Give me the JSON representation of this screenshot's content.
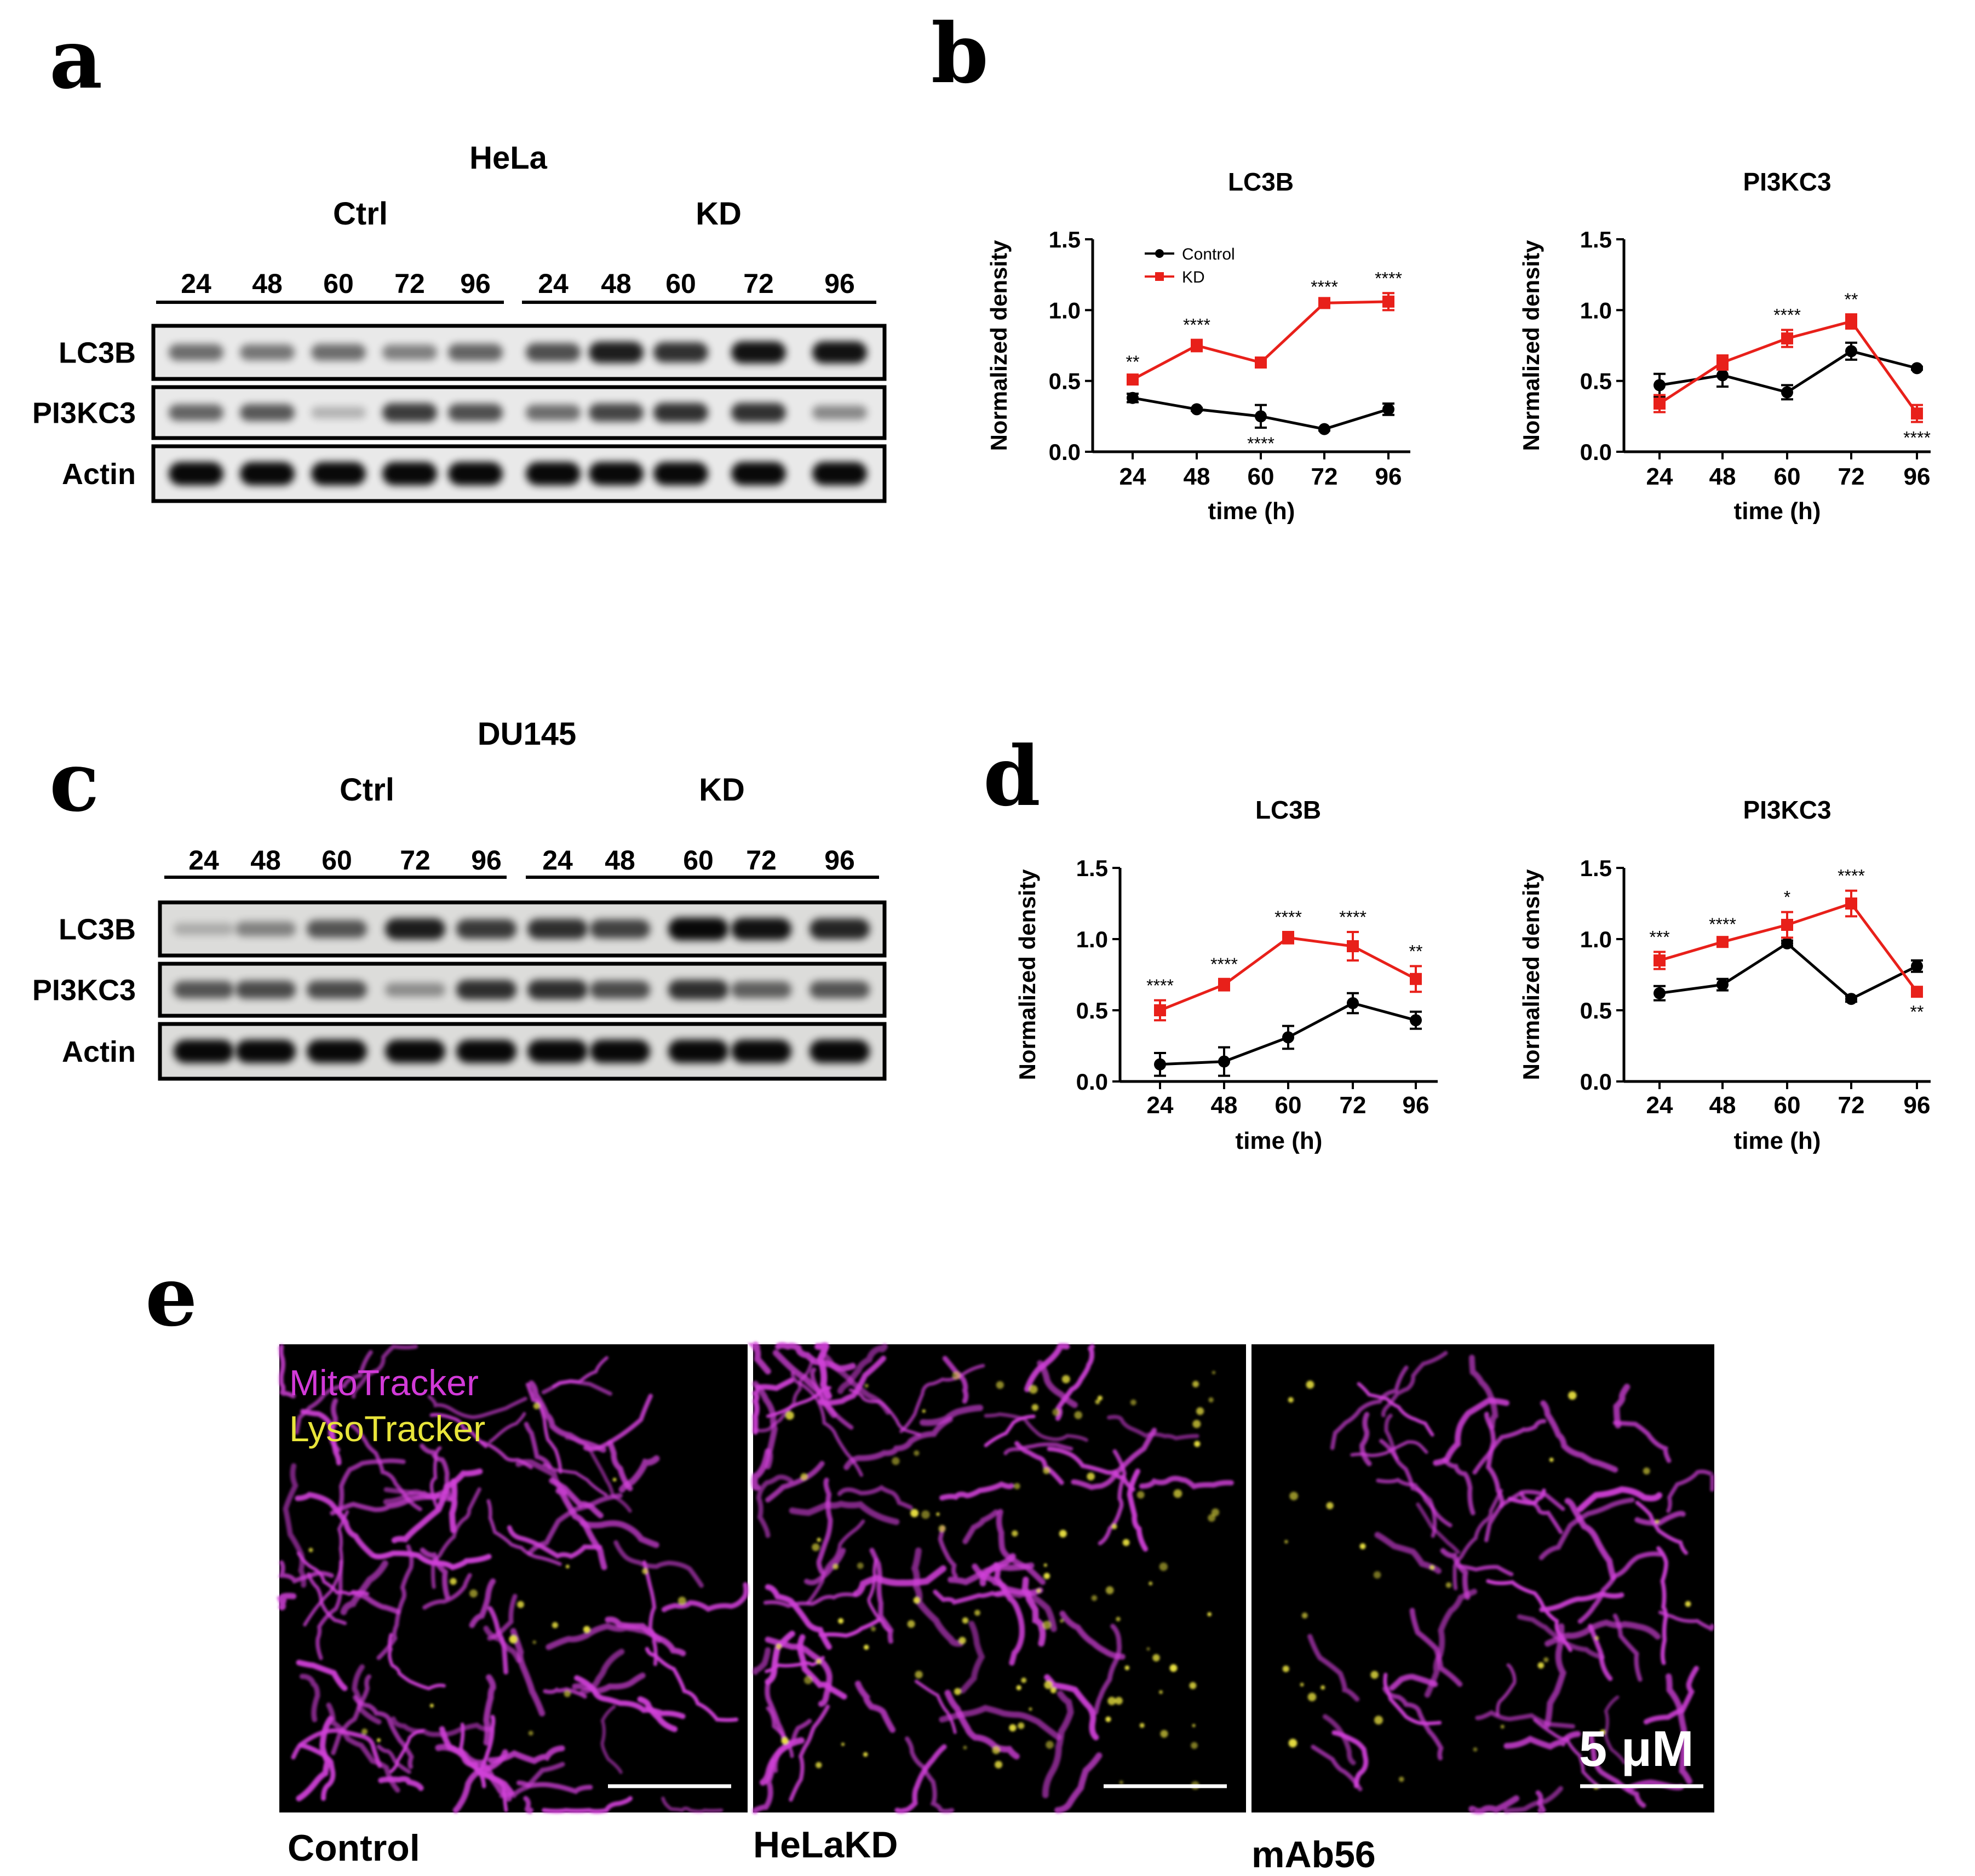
{
  "panels": {
    "a": {
      "letter": "a",
      "cell_line": "HeLa",
      "groups": [
        "Ctrl",
        "KD"
      ],
      "lanes": [
        "24",
        "48",
        "60",
        "72",
        "96",
        "24",
        "48",
        "60",
        "72",
        "96"
      ],
      "rows": [
        "LC3B",
        "PI3KC3",
        "Actin"
      ],
      "lc3b_intensity": [
        0.45,
        0.4,
        0.45,
        0.35,
        0.5,
        0.6,
        0.85,
        0.75,
        0.9,
        0.9
      ],
      "pi3kc3_intensity": [
        0.5,
        0.55,
        0.1,
        0.7,
        0.6,
        0.45,
        0.65,
        0.75,
        0.75,
        0.3
      ],
      "actin_intensity": [
        0.95,
        0.95,
        0.95,
        0.95,
        0.95,
        0.95,
        0.95,
        0.95,
        0.95,
        0.95
      ]
    },
    "b": {
      "letter": "b"
    },
    "c": {
      "letter": "c",
      "cell_line": "DU145",
      "groups": [
        "Ctrl",
        "KD"
      ],
      "lanes": [
        "24",
        "48",
        "60",
        "72",
        "96",
        "24",
        "48",
        "60",
        "72",
        "96"
      ],
      "rows": [
        "LC3B",
        "PI3KC3",
        "Actin"
      ],
      "lc3b_intensity": [
        0.08,
        0.3,
        0.55,
        0.85,
        0.7,
        0.75,
        0.65,
        0.95,
        0.9,
        0.8
      ],
      "pi3kc3_intensity": [
        0.55,
        0.6,
        0.6,
        0.25,
        0.75,
        0.75,
        0.6,
        0.75,
        0.5,
        0.55
      ],
      "actin_intensity": [
        0.95,
        0.95,
        0.95,
        0.95,
        0.95,
        0.95,
        0.95,
        0.95,
        0.95,
        0.95
      ]
    },
    "d": {
      "letter": "d"
    },
    "e": {
      "letter": "e",
      "legend_magenta": "MitoTracker",
      "legend_yellow": "LysoTracker",
      "scale_label": "5 μM",
      "image_labels": [
        "Control",
        "HeLaKD",
        "mAb56"
      ],
      "colors": {
        "mito": "#d040d8",
        "lyso": "#e8e040",
        "background": "#000000"
      }
    }
  },
  "chart_data": [
    {
      "type": "line",
      "panel": "b",
      "title": "LC3B",
      "xlabel": "time (h)",
      "ylabel": "Normalized density",
      "categories": [
        "24",
        "48",
        "60",
        "72",
        "96"
      ],
      "ylim": [
        0,
        1.5
      ],
      "yticks": [
        "0.0",
        "0.5",
        "1.0",
        "1.5"
      ],
      "legend": true,
      "series": [
        {
          "name": "Control",
          "color": "#000000",
          "marker": "circle",
          "values": [
            0.38,
            0.3,
            0.25,
            0.16,
            0.3
          ],
          "errors": [
            0.03,
            0.01,
            0.08,
            0.01,
            0.04
          ]
        },
        {
          "name": "KD",
          "color": "#e8201a",
          "marker": "square",
          "values": [
            0.51,
            0.75,
            0.63,
            1.05,
            1.06
          ],
          "errors": [
            0.02,
            0.04,
            0.02,
            0.01,
            0.06
          ]
        }
      ],
      "annotations": [
        "**",
        "****",
        "****",
        "****",
        "****"
      ],
      "annotation_pos": [
        "above",
        "above",
        "below",
        "above",
        "above"
      ]
    },
    {
      "type": "line",
      "panel": "b",
      "title": "PI3KC3",
      "xlabel": "time (h)",
      "ylabel": "Normalized density",
      "categories": [
        "24",
        "48",
        "60",
        "72",
        "96"
      ],
      "ylim": [
        0,
        1.5
      ],
      "yticks": [
        "0.0",
        "0.5",
        "1.0",
        "1.5"
      ],
      "legend": false,
      "series": [
        {
          "name": "Control",
          "color": "#000000",
          "marker": "circle",
          "values": [
            0.47,
            0.54,
            0.42,
            0.71,
            0.59
          ],
          "errors": [
            0.08,
            0.08,
            0.05,
            0.06,
            0.01
          ]
        },
        {
          "name": "KD",
          "color": "#e8201a",
          "marker": "square",
          "values": [
            0.34,
            0.63,
            0.8,
            0.92,
            0.27
          ],
          "errors": [
            0.06,
            0.05,
            0.06,
            0.05,
            0.06
          ]
        }
      ],
      "annotations": [
        "",
        "",
        "****",
        "**",
        "****"
      ],
      "annotation_pos": [
        "above",
        "above",
        "above",
        "above",
        "below"
      ]
    },
    {
      "type": "line",
      "panel": "d",
      "title": "LC3B",
      "xlabel": "time (h)",
      "ylabel": "Normalized density",
      "categories": [
        "24",
        "48",
        "60",
        "72",
        "96"
      ],
      "ylim": [
        0,
        1.5
      ],
      "yticks": [
        "0.0",
        "0.5",
        "1.0",
        "1.5"
      ],
      "legend": false,
      "series": [
        {
          "name": "Control",
          "color": "#000000",
          "marker": "circle",
          "values": [
            0.12,
            0.14,
            0.31,
            0.55,
            0.43
          ],
          "errors": [
            0.08,
            0.1,
            0.08,
            0.07,
            0.06
          ]
        },
        {
          "name": "KD",
          "color": "#e8201a",
          "marker": "square",
          "values": [
            0.5,
            0.68,
            1.01,
            0.95,
            0.72
          ],
          "errors": [
            0.07,
            0.04,
            0.04,
            0.1,
            0.09
          ]
        }
      ],
      "annotations": [
        "****",
        "****",
        "****",
        "****",
        "**"
      ],
      "annotation_pos": [
        "above",
        "above",
        "above",
        "above",
        "above"
      ]
    },
    {
      "type": "line",
      "panel": "d",
      "title": "PI3KC3",
      "xlabel": "time (h)",
      "ylabel": "Normalized density",
      "categories": [
        "24",
        "48",
        "60",
        "72",
        "96"
      ],
      "ylim": [
        0,
        1.5
      ],
      "yticks": [
        "0.0",
        "0.5",
        "1.0",
        "1.5"
      ],
      "legend": false,
      "series": [
        {
          "name": "Control",
          "color": "#000000",
          "marker": "circle",
          "values": [
            0.62,
            0.68,
            0.97,
            0.58,
            0.81
          ],
          "errors": [
            0.05,
            0.04,
            0.02,
            0.02,
            0.04
          ]
        },
        {
          "name": "KD",
          "color": "#e8201a",
          "marker": "square",
          "values": [
            0.85,
            0.98,
            1.1,
            1.25,
            0.63
          ],
          "errors": [
            0.06,
            0.02,
            0.09,
            0.09,
            0.03
          ]
        }
      ],
      "annotations": [
        "***",
        "****",
        "*",
        "****",
        "**"
      ],
      "annotation_pos": [
        "above",
        "above",
        "above",
        "above",
        "below"
      ]
    }
  ]
}
